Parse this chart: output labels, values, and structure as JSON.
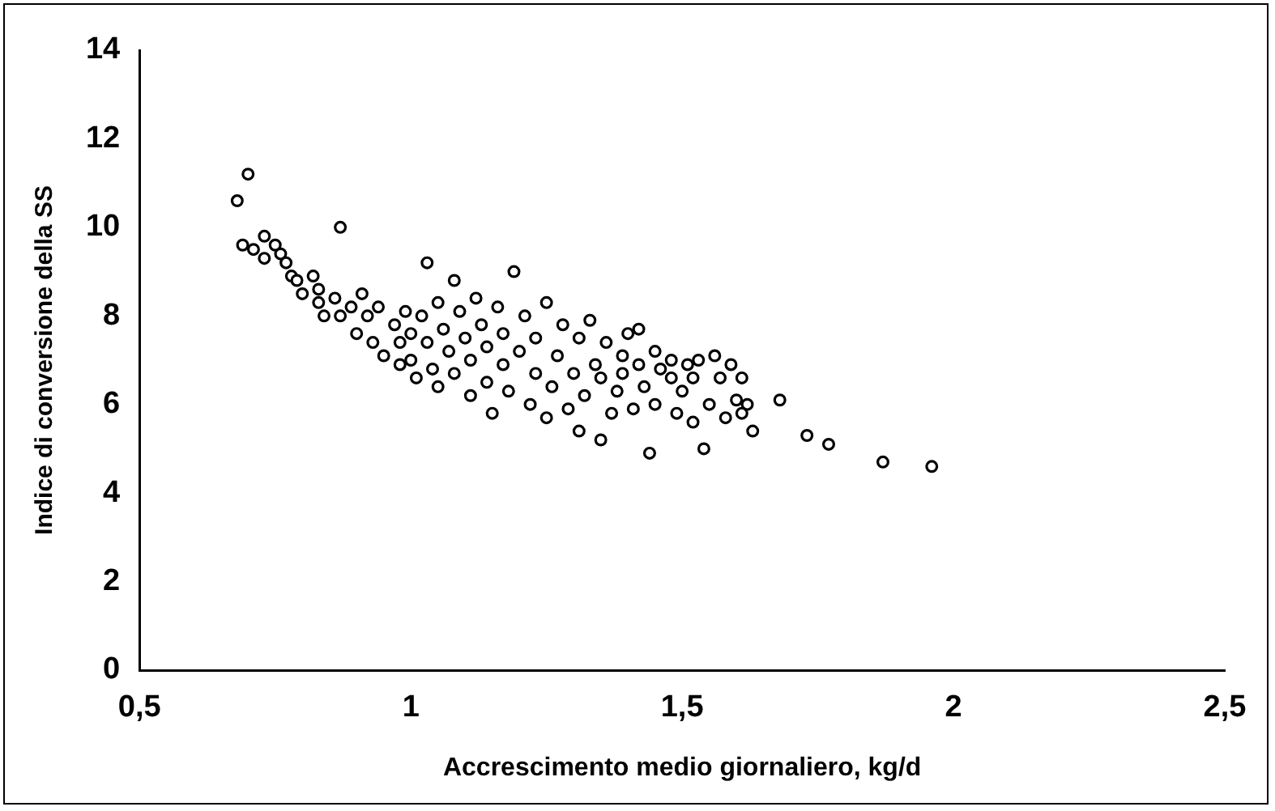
{
  "chart_data": {
    "type": "scatter",
    "xlabel": "Accrescimento medio giornaliero, kg/d",
    "ylabel": "Indice di conversione della SS",
    "marker": "circle",
    "grid": false,
    "legend": false,
    "xlim": [
      0.5,
      2.5
    ],
    "xticks": [
      {
        "value": 0.5,
        "label": "0,5"
      },
      1,
      {
        "value": 1.5,
        "label": "1,5"
      },
      2,
      {
        "value": 2.5,
        "label": "2,5"
      }
    ],
    "ylim": [
      0,
      14
    ],
    "yticks": [
      0,
      2,
      4,
      6,
      8,
      10,
      12,
      14
    ],
    "series": [
      {
        "color": "#000000",
        "x": [
          0.68,
          0.7,
          0.69,
          0.71,
          0.73,
          0.73,
          0.75,
          0.76,
          0.77,
          0.78,
          0.79,
          0.8,
          0.82,
          0.83,
          0.83,
          0.84,
          0.86,
          0.87,
          0.87,
          0.89,
          0.9,
          0.91,
          0.92,
          0.93,
          0.94,
          0.95,
          0.97,
          0.98,
          0.98,
          0.99,
          1.0,
          1.0,
          1.01,
          1.02,
          1.03,
          1.03,
          1.04,
          1.05,
          1.05,
          1.06,
          1.07,
          1.08,
          1.08,
          1.09,
          1.1,
          1.11,
          1.11,
          1.12,
          1.13,
          1.14,
          1.14,
          1.15,
          1.16,
          1.17,
          1.17,
          1.18,
          1.19,
          1.2,
          1.21,
          1.22,
          1.23,
          1.23,
          1.25,
          1.25,
          1.26,
          1.27,
          1.28,
          1.29,
          1.3,
          1.31,
          1.31,
          1.32,
          1.33,
          1.34,
          1.35,
          1.35,
          1.36,
          1.37,
          1.38,
          1.39,
          1.39,
          1.4,
          1.41,
          1.42,
          1.42,
          1.43,
          1.44,
          1.45,
          1.45,
          1.46,
          1.48,
          1.48,
          1.49,
          1.5,
          1.51,
          1.52,
          1.52,
          1.53,
          1.54,
          1.55,
          1.56,
          1.57,
          1.58,
          1.59,
          1.6,
          1.61,
          1.61,
          1.62,
          1.63,
          1.68,
          1.73,
          1.77,
          1.87,
          1.96
        ],
        "values": [
          10.6,
          11.2,
          9.6,
          9.5,
          9.3,
          9.8,
          9.6,
          9.4,
          9.2,
          8.9,
          8.8,
          8.5,
          8.9,
          8.6,
          8.3,
          8.0,
          8.4,
          10.0,
          8.0,
          8.2,
          7.6,
          8.5,
          8.0,
          7.4,
          8.2,
          7.1,
          7.8,
          7.4,
          6.9,
          8.1,
          7.6,
          7.0,
          6.6,
          8.0,
          9.2,
          7.4,
          6.8,
          6.4,
          8.3,
          7.7,
          7.2,
          6.7,
          8.8,
          8.1,
          7.5,
          6.2,
          7.0,
          8.4,
          7.8,
          6.5,
          7.3,
          5.8,
          8.2,
          6.9,
          7.6,
          6.3,
          9.0,
          7.2,
          8.0,
          6.0,
          6.7,
          7.5,
          5.7,
          8.3,
          6.4,
          7.1,
          7.8,
          5.9,
          6.7,
          7.5,
          5.4,
          6.2,
          7.9,
          6.9,
          5.2,
          6.6,
          7.4,
          5.8,
          6.3,
          7.1,
          6.7,
          7.6,
          5.9,
          7.7,
          6.9,
          6.4,
          4.9,
          7.2,
          6.0,
          6.8,
          6.6,
          7.0,
          5.8,
          6.3,
          6.9,
          5.6,
          6.6,
          7.0,
          5.0,
          6.0,
          7.1,
          6.6,
          5.7,
          6.9,
          6.1,
          6.6,
          5.8,
          6.0,
          5.4,
          6.1,
          5.3,
          5.1,
          4.7,
          4.6
        ]
      }
    ]
  }
}
